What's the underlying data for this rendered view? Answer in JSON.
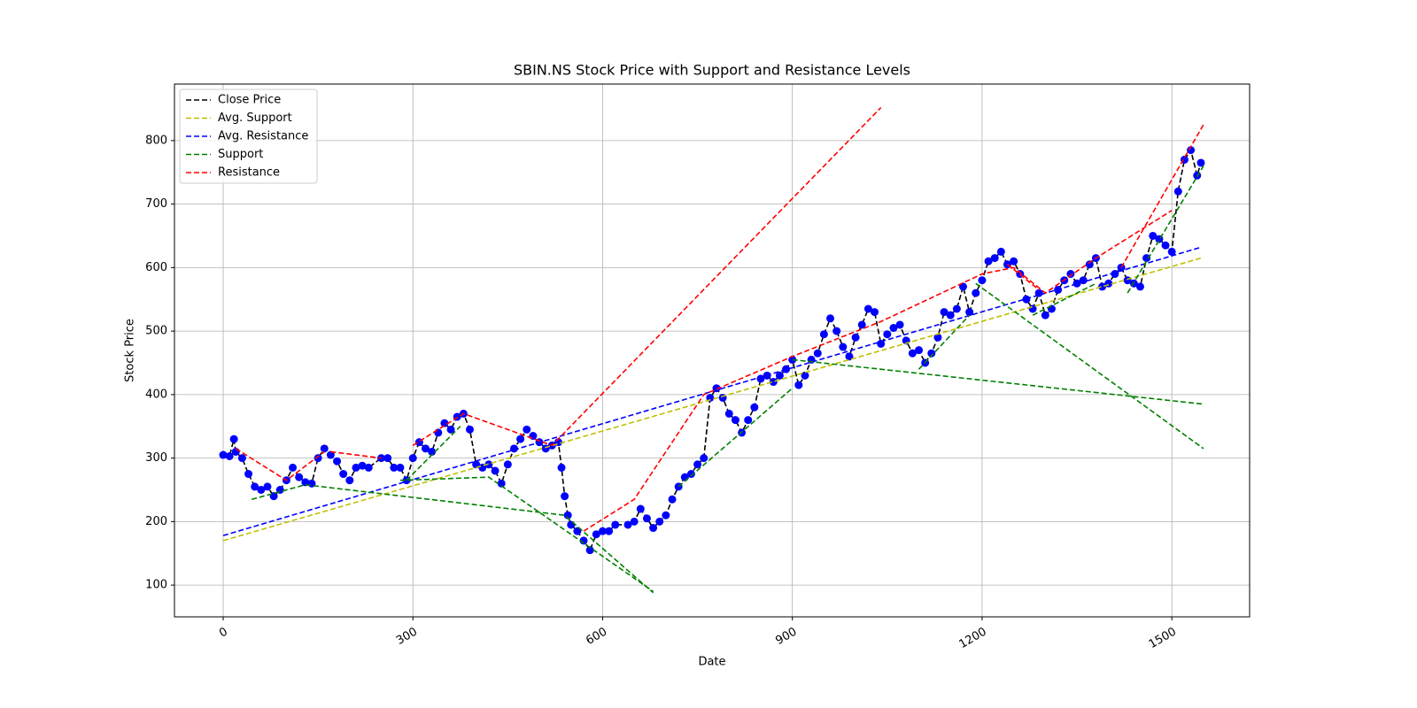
{
  "chart_data": {
    "type": "line",
    "title": "SBIN.NS Stock Price with Support and Resistance Levels",
    "x_label": "Date",
    "y_label": "Stock Price",
    "xlim": [
      -77,
      1623
    ],
    "ylim": [
      50,
      889
    ],
    "xticks": [
      0,
      300,
      600,
      900,
      1200,
      1500
    ],
    "yticks": [
      100,
      200,
      300,
      400,
      500,
      600,
      700,
      800
    ],
    "grid": true,
    "legend": "upper left",
    "series": [
      {
        "name": "Close Price",
        "color": "#000000",
        "marker_color": "#0000ff",
        "x": [
          0,
          10,
          17,
          20,
          30,
          40,
          50,
          60,
          70,
          80,
          90,
          100,
          110,
          120,
          130,
          140,
          150,
          160,
          170,
          180,
          190,
          200,
          210,
          220,
          230,
          250,
          260,
          270,
          280,
          290,
          300,
          310,
          320,
          330,
          340,
          350,
          360,
          370,
          380,
          390,
          400,
          410,
          420,
          430,
          440,
          450,
          460,
          470,
          480,
          490,
          500,
          510,
          520,
          530,
          535,
          540,
          545,
          550,
          560,
          570,
          580,
          590,
          600,
          610,
          620,
          640,
          650,
          660,
          670,
          680,
          690,
          700,
          710,
          720,
          730,
          740,
          750,
          760,
          770,
          780,
          790,
          800,
          810,
          820,
          830,
          840,
          850,
          860,
          870,
          880,
          890,
          900,
          910,
          920,
          930,
          940,
          950,
          960,
          970,
          980,
          990,
          1000,
          1010,
          1020,
          1030,
          1040,
          1050,
          1060,
          1070,
          1080,
          1090,
          1100,
          1110,
          1120,
          1130,
          1140,
          1150,
          1160,
          1170,
          1180,
          1190,
          1200,
          1210,
          1220,
          1230,
          1240,
          1250,
          1260,
          1270,
          1280,
          1290,
          1300,
          1310,
          1320,
          1330,
          1340,
          1350,
          1360,
          1370,
          1380,
          1390,
          1400,
          1410,
          1420,
          1430,
          1440,
          1450,
          1460,
          1470,
          1480,
          1490,
          1500,
          1510,
          1520,
          1530,
          1540,
          1546
        ],
        "values": [
          305,
          303,
          330,
          310,
          300,
          275,
          255,
          250,
          255,
          240,
          250,
          265,
          285,
          270,
          262,
          260,
          300,
          315,
          305,
          295,
          275,
          265,
          285,
          288,
          285,
          300,
          300,
          285,
          285,
          265,
          300,
          325,
          315,
          310,
          340,
          355,
          345,
          365,
          370,
          345,
          290,
          285,
          290,
          280,
          260,
          290,
          315,
          330,
          345,
          335,
          325,
          315,
          320,
          325,
          285,
          240,
          210,
          195,
          185,
          170,
          155,
          180,
          185,
          185,
          195,
          195,
          200,
          220,
          205,
          190,
          200,
          210,
          235,
          255,
          270,
          275,
          290,
          300,
          395,
          410,
          395,
          370,
          360,
          340,
          360,
          380,
          425,
          430,
          420,
          430,
          440,
          455,
          415,
          430,
          455,
          465,
          495,
          520,
          500,
          475,
          460,
          490,
          510,
          535,
          530,
          480,
          495,
          505,
          510,
          485,
          465,
          470,
          450,
          465,
          490,
          530,
          525,
          535,
          570,
          530,
          560,
          580,
          610,
          615,
          625,
          605,
          610,
          590,
          550,
          535,
          560,
          525,
          535,
          565,
          580,
          590,
          575,
          580,
          605,
          615,
          570,
          575,
          590,
          600,
          580,
          575,
          570,
          615,
          650,
          645,
          635,
          625,
          720,
          770,
          785,
          745,
          765
        ]
      },
      {
        "name": "Avg. Support",
        "color": "#bfbf00",
        "x": [
          0,
          1546
        ],
        "values": [
          170,
          615
        ]
      },
      {
        "name": "Avg. Resistance",
        "color": "#0000ff",
        "x": [
          0,
          1546
        ],
        "values": [
          178,
          632
        ]
      },
      {
        "name": "Support",
        "color": "#008000",
        "x": [
          45,
          130,
          540,
          680,
          null,
          280,
          420,
          680,
          null,
          290,
          375,
          null,
          720,
          900,
          null,
          900,
          1550,
          null,
          1190,
          1550,
          null,
          1100,
          1180,
          null,
          1280,
          1380,
          null,
          1430,
          1550
        ],
        "values": [
          235,
          258,
          210,
          88,
          null,
          265,
          270,
          90,
          null,
          265,
          350,
          null,
          255,
          410,
          null,
          455,
          385,
          null,
          575,
          315,
          null,
          440,
          525,
          null,
          525,
          575,
          null,
          560,
          760
        ]
      },
      {
        "name": "Resistance",
        "color": "#ff0000",
        "x": [
          20,
          100,
          160,
          null,
          170,
          250,
          null,
          300,
          380,
          520,
          1040,
          null,
          570,
          650,
          760,
          900,
          1040,
          1200,
          1250,
          1300,
          1380,
          1500,
          null,
          1240,
          1290,
          null,
          1420,
          1550
        ],
        "values": [
          315,
          265,
          310,
          null,
          310,
          300,
          null,
          320,
          370,
          320,
          852,
          null,
          185,
          235,
          400,
          460,
          515,
          590,
          600,
          560,
          615,
          690,
          null,
          605,
          565,
          null,
          600,
          825
        ]
      }
    ]
  }
}
